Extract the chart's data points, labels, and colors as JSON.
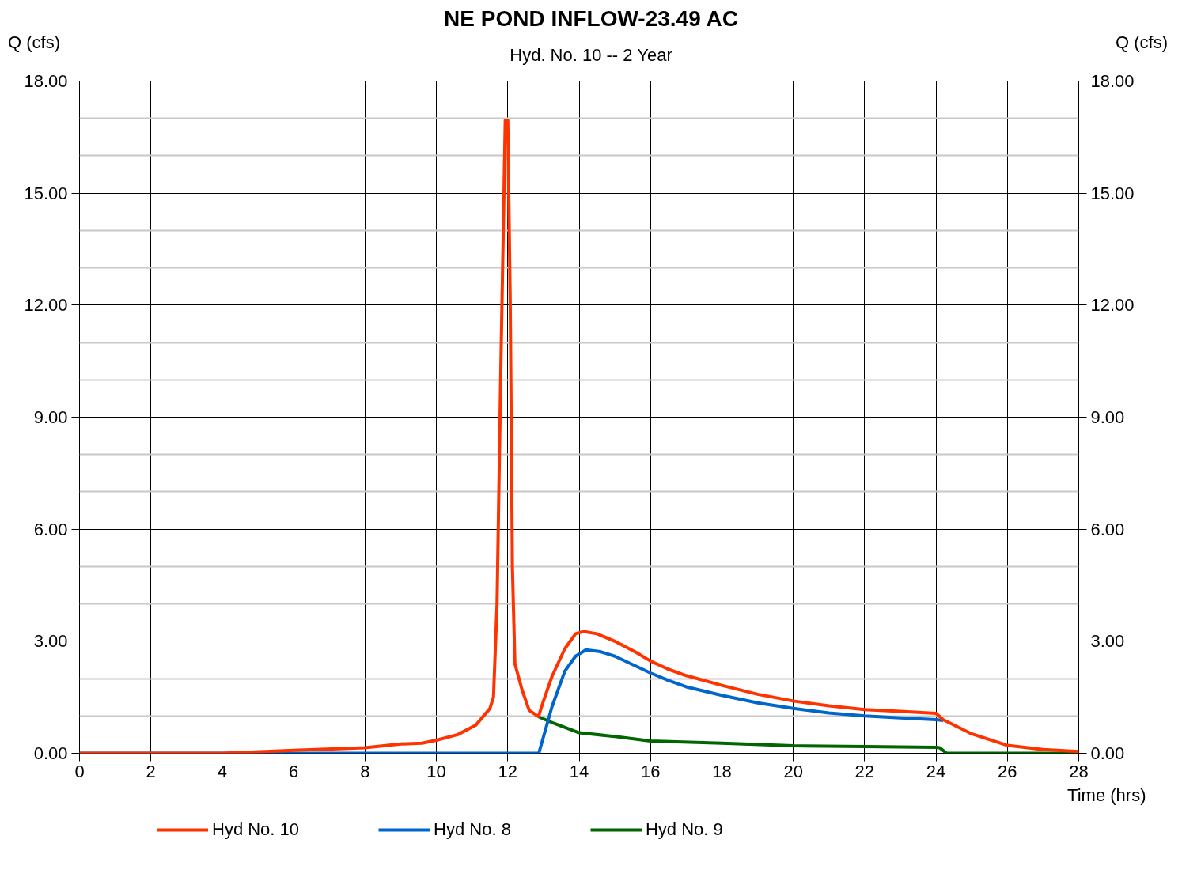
{
  "chart_data": {
    "type": "line",
    "title": "NE POND INFLOW-23.49 AC",
    "subtitle": "Hyd. No. 10 -- 2 Year",
    "xlabel": "Time (hrs)",
    "ylabel": "Q (cfs)",
    "y2label": "Q (cfs)",
    "xlim": [
      0,
      28
    ],
    "xticks": [
      0,
      2,
      4,
      6,
      8,
      10,
      12,
      14,
      16,
      18,
      20,
      22,
      24,
      26,
      28
    ],
    "ylim": [
      0,
      18
    ],
    "yticks": [
      {
        "value": 0,
        "label": "0.00"
      },
      {
        "value": 1,
        "label": null
      },
      {
        "value": 2,
        "label": null
      },
      {
        "value": 3,
        "label": "3.00"
      },
      {
        "value": 4,
        "label": null
      },
      {
        "value": 5,
        "label": null
      },
      {
        "value": 6,
        "label": "6.00"
      },
      {
        "value": 7,
        "label": null
      },
      {
        "value": 8,
        "label": null
      },
      {
        "value": 9,
        "label": "9.00"
      },
      {
        "value": 10,
        "label": null
      },
      {
        "value": 11,
        "label": null
      },
      {
        "value": 12,
        "label": "12.00"
      },
      {
        "value": 13,
        "label": null
      },
      {
        "value": 14,
        "label": null
      },
      {
        "value": 15,
        "label": "15.00"
      },
      {
        "value": 16,
        "label": null
      },
      {
        "value": 17,
        "label": null
      },
      {
        "value": 18,
        "label": "18.00"
      }
    ],
    "y2lim": [
      0,
      18
    ],
    "y2ticks": [
      {
        "value": 0,
        "label": "0.00"
      },
      {
        "value": 3,
        "label": "3.00"
      },
      {
        "value": 6,
        "label": "6.00"
      },
      {
        "value": 9,
        "label": "9.00"
      },
      {
        "value": 12,
        "label": "12.00"
      },
      {
        "value": 15,
        "label": "15.00"
      },
      {
        "value": 18,
        "label": "18.00"
      }
    ],
    "grid": true,
    "legend": "bottom",
    "line_style": "solid",
    "marker": "none",
    "series": [
      {
        "name": "Hyd No. 10",
        "color": "#ff3300",
        "x": [
          0,
          4,
          6,
          8,
          9,
          9.6,
          10,
          10.6,
          11.1,
          11.5,
          11.6,
          11.7,
          11.8,
          11.93,
          12.0,
          12.07,
          12.13,
          12.2,
          12.4,
          12.6,
          12.86,
          13.0,
          13.24,
          13.6,
          13.9,
          14.12,
          14.5,
          15,
          15.6,
          16,
          16.5,
          17,
          18,
          19,
          20,
          21,
          22,
          23,
          24,
          24.2,
          25,
          26,
          27,
          28
        ],
        "values": [
          0,
          0,
          0.08,
          0.15,
          0.25,
          0.27,
          0.35,
          0.5,
          0.75,
          1.2,
          1.5,
          4,
          10,
          16.95,
          16.95,
          12,
          5,
          2.4,
          1.7,
          1.15,
          0.98,
          1.4,
          2.06,
          2.8,
          3.2,
          3.26,
          3.2,
          3.0,
          2.7,
          2.47,
          2.25,
          2.08,
          1.82,
          1.58,
          1.4,
          1.27,
          1.17,
          1.12,
          1.07,
          0.9,
          0.52,
          0.21,
          0.1,
          0.05
        ]
      },
      {
        "name": "Hyd No. 8",
        "color": "#0066cc",
        "x": [
          0,
          12.87,
          13.24,
          13.6,
          13.9,
          14.19,
          14.6,
          15,
          16,
          16.5,
          17,
          18,
          19,
          20,
          21,
          22,
          23,
          24,
          24.2
        ],
        "values": [
          0,
          0,
          1.25,
          2.2,
          2.6,
          2.77,
          2.72,
          2.6,
          2.15,
          1.95,
          1.78,
          1.55,
          1.35,
          1.2,
          1.08,
          1.0,
          0.95,
          0.9,
          0.88
        ]
      },
      {
        "name": "Hyd No. 9",
        "color": "#006600",
        "x": [
          12.86,
          13.3,
          14,
          15,
          16,
          18,
          20,
          22,
          24,
          24.1,
          24.3,
          28
        ],
        "values": [
          0.98,
          0.8,
          0.55,
          0.45,
          0.33,
          0.27,
          0.2,
          0.18,
          0.16,
          0.15,
          0,
          0
        ]
      }
    ]
  }
}
